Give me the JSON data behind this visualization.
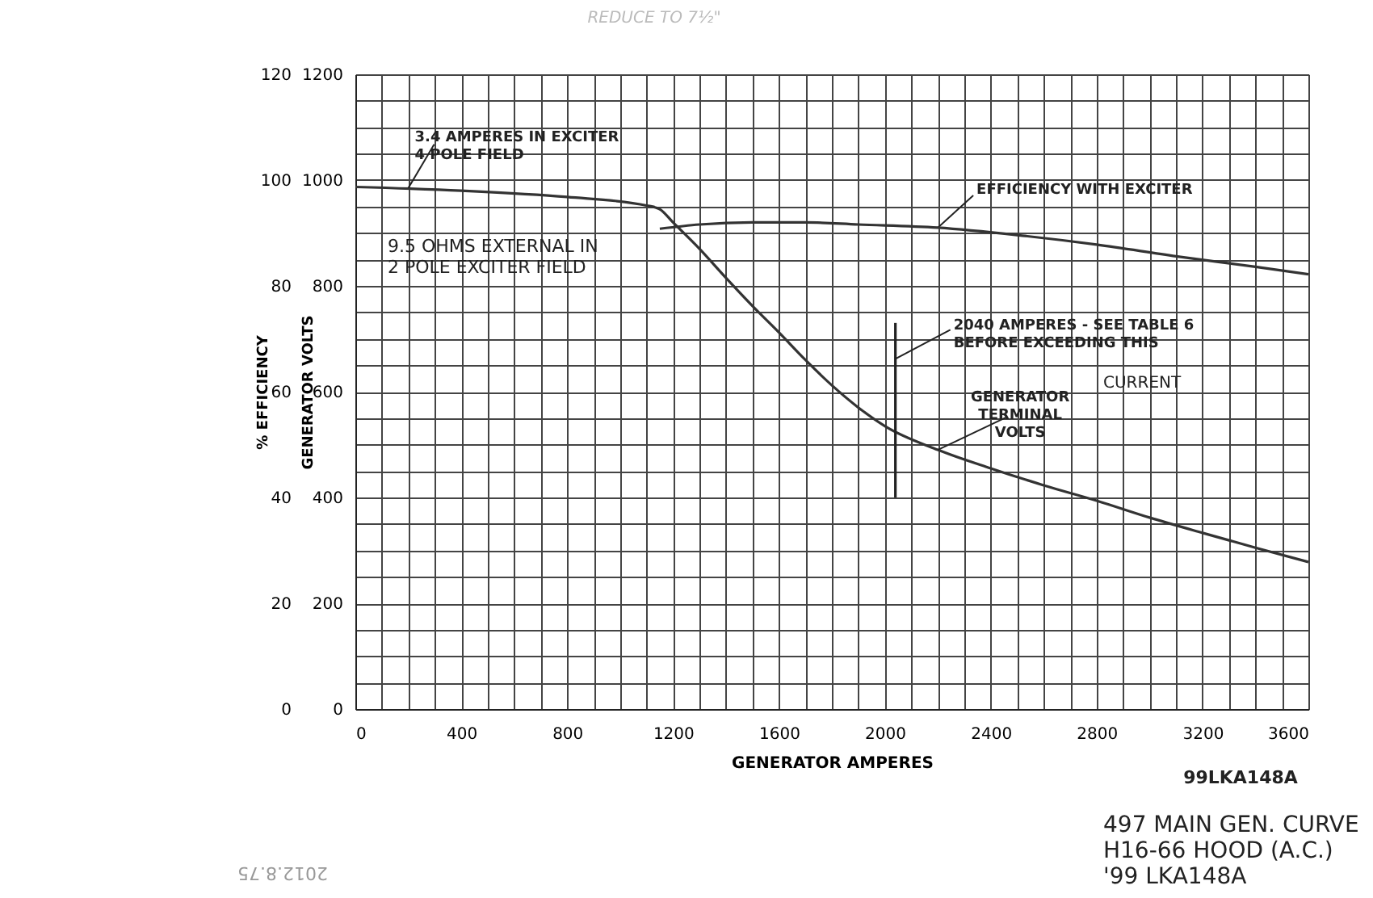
{
  "chart_data": {
    "type": "line",
    "xlabel": "GENERATOR AMPERES",
    "ylabel": "GENERATOR VOLTS",
    "y2label": "% EFFICIENCY",
    "xlim": [
      0,
      3600
    ],
    "xticks": [
      0,
      {
        "value": 100,
        "label": null
      },
      {
        "value": 200,
        "label": null
      },
      {
        "value": 300,
        "label": null
      },
      400,
      {
        "value": 500,
        "label": null
      },
      {
        "value": 600,
        "label": null
      },
      {
        "value": 700,
        "label": null
      },
      800,
      {
        "value": 900,
        "label": null
      },
      {
        "value": 1000,
        "label": null
      },
      {
        "value": 1100,
        "label": null
      },
      1200,
      {
        "value": 1300,
        "label": null
      },
      {
        "value": 1400,
        "label": null
      },
      {
        "value": 1500,
        "label": null
      },
      1600,
      {
        "value": 1700,
        "label": null
      },
      {
        "value": 1800,
        "label": null
      },
      {
        "value": 1900,
        "label": null
      },
      2000,
      {
        "value": 2100,
        "label": null
      },
      {
        "value": 2200,
        "label": null
      },
      {
        "value": 2300,
        "label": null
      },
      2400,
      {
        "value": 2500,
        "label": null
      },
      {
        "value": 2600,
        "label": null
      },
      {
        "value": 2700,
        "label": null
      },
      2800,
      {
        "value": 2900,
        "label": null
      },
      {
        "value": 3000,
        "label": null
      },
      {
        "value": 3100,
        "label": null
      },
      3200,
      {
        "value": 3300,
        "label": null
      },
      {
        "value": 3400,
        "label": null
      },
      {
        "value": 3500,
        "label": null
      },
      3600
    ],
    "ylim": [
      0,
      1200
    ],
    "yticks": [
      0,
      {
        "value": 50,
        "label": null
      },
      {
        "value": 100,
        "label": null
      },
      {
        "value": 150,
        "label": null
      },
      200,
      {
        "value": 250,
        "label": null
      },
      {
        "value": 300,
        "label": null
      },
      {
        "value": 350,
        "label": null
      },
      400,
      {
        "value": 450,
        "label": null
      },
      {
        "value": 500,
        "label": null
      },
      {
        "value": 550,
        "label": null
      },
      600,
      {
        "value": 650,
        "label": null
      },
      {
        "value": 700,
        "label": null
      },
      {
        "value": 750,
        "label": null
      },
      800,
      {
        "value": 850,
        "label": null
      },
      {
        "value": 900,
        "label": null
      },
      {
        "value": 950,
        "label": null
      },
      1000,
      {
        "value": 1050,
        "label": null
      },
      {
        "value": 1100,
        "label": null
      },
      {
        "value": 1150,
        "label": null
      },
      1200
    ],
    "y2lim": [
      0,
      120
    ],
    "y2ticks": [
      0,
      20,
      40,
      60,
      80,
      100,
      120
    ],
    "grid": true,
    "marker": "none",
    "line_style": "solid",
    "series": [
      {
        "color": "#333333",
        "x": [
          0,
          400,
          800,
          1100,
          1150,
          1200,
          1300,
          1400,
          1500,
          1600,
          1700,
          1800,
          1900,
          2000,
          2200,
          2400,
          2600,
          2800,
          3000,
          3200,
          3400,
          3600
        ],
        "values": [
          987,
          980,
          968,
          952,
          945,
          920,
          870,
          815,
          762,
          712,
          660,
          612,
          570,
          535,
          490,
          455,
          423,
          394,
          362,
          333,
          305,
          278
        ]
      },
      {
        "color": "#333333",
        "axis": "y2",
        "x": [
          1150,
          1300,
          1500,
          1700,
          1900,
          2200,
          2500,
          2800,
          3100,
          3400,
          3600
        ],
        "values": [
          90.8,
          91.6,
          92.0,
          92.0,
          91.6,
          91.0,
          89.6,
          87.8,
          85.6,
          83.6,
          82.2
        ]
      },
      {
        "color": "#222222",
        "x": [
          2040,
          2040
        ],
        "values": [
          400,
          730
        ]
      }
    ],
    "annotations": [
      {
        "text": "3.4 AMPERES IN EXCITER\n   4 POLE FIELD",
        "x": 200,
        "y": 985
      },
      "9.5 OHMS EXTERNAL IN\n2 POLE EXCITER FIELD",
      {
        "text": "EFFICIENCY WITH EXCITER",
        "x": 2200,
        "y": 910
      },
      {
        "text": "2040 AMPERES - SEE TABLE 6\nBEFORE EXCEEDING THIS",
        "x": 2040,
        "y": 662
      },
      "CURRENT",
      {
        "text": "GENERATOR\nTERMINAL\nVOLTS",
        "x": 2200,
        "y": 490
      },
      "99LKA148A",
      "497 MAIN GEN. CURVE\nH16-66 HOOD (A.C.)\n'99 LKA148A",
      "REDUCE TO 7½\"",
      "2012.8.75"
    ]
  }
}
